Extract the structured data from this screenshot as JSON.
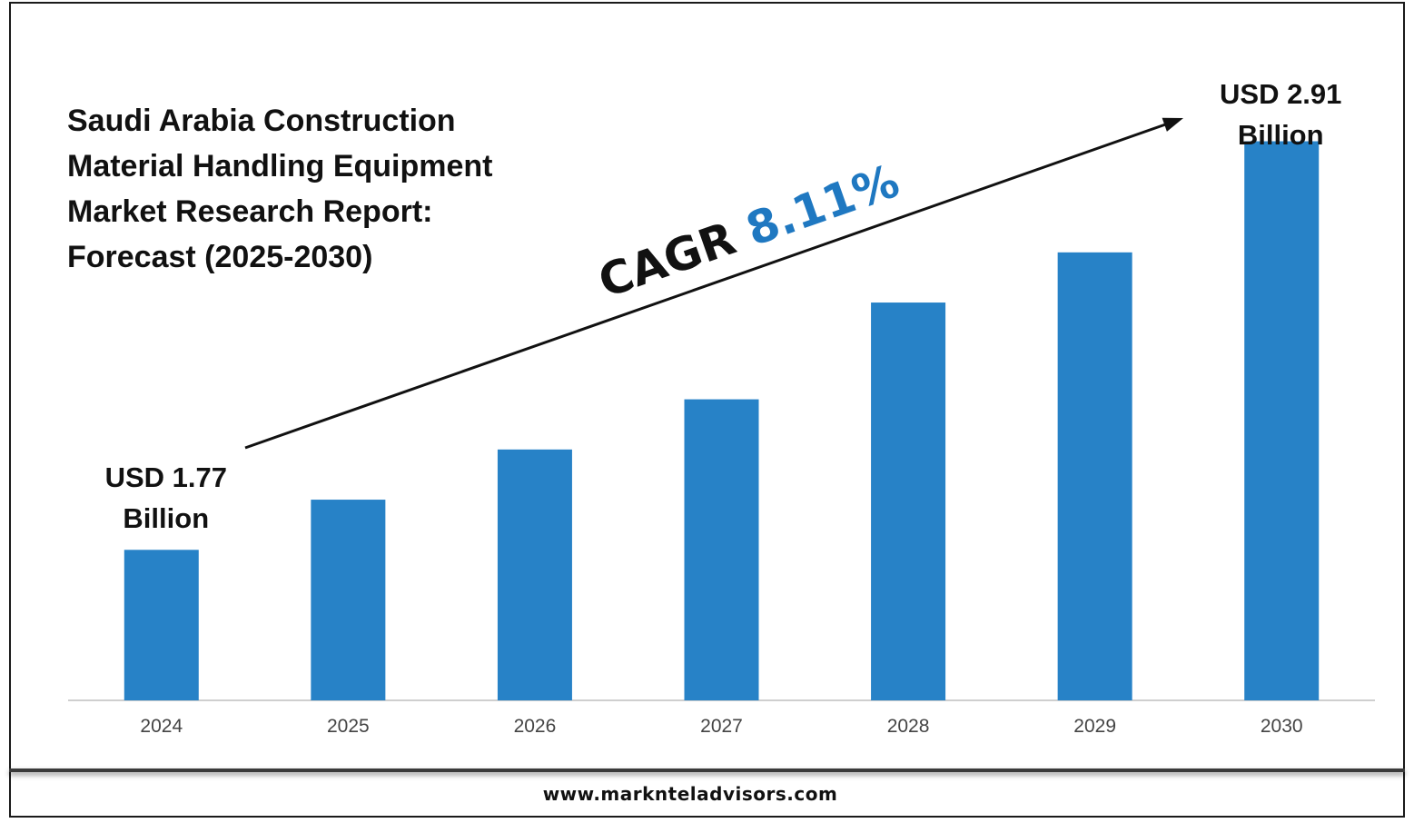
{
  "title_lines": [
    "Saudi Arabia Construction",
    "Material Handling Equipment",
    "Market Research Report:",
    "Forecast (2025-2030)"
  ],
  "footer": {
    "website": "www.marknteladvisors.com"
  },
  "colors": {
    "bar": "#2782C7",
    "cagr_value": "#1F78C1",
    "text": "#111111",
    "axis_label": "#444444"
  },
  "chart_data": {
    "type": "bar",
    "categories": [
      "2024",
      "2025",
      "2026",
      "2027",
      "2028",
      "2029",
      "2030"
    ],
    "values": [
      1.77,
      1.91,
      2.05,
      2.19,
      2.46,
      2.6,
      2.91
    ],
    "ylim": [
      1.35,
      3.0
    ],
    "grid": false,
    "annotations": {
      "first": {
        "line1": "USD 1.77",
        "line2": "Billion"
      },
      "last": {
        "line1": "USD 2.91",
        "line2": "Billion"
      },
      "cagr": {
        "label": "CAGR",
        "value": "8.11%"
      }
    }
  }
}
